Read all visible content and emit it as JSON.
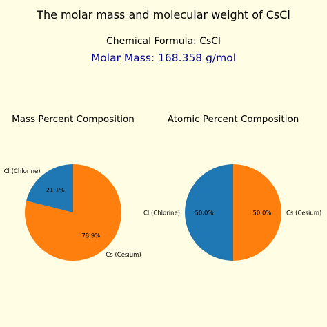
{
  "title": "The molar mass and molecular weight of CsCl",
  "formula_line": "Chemical Formula: CsCl",
  "molar_mass_line": "Molar Mass: 168.358 g/mol",
  "colors": {
    "background": "#fffde3",
    "cesium": "#ff7f0e",
    "chlorine": "#1f77b4",
    "molar_mass_text": "#00008b"
  },
  "chart_data": [
    {
      "type": "pie",
      "title": "Mass Percent Composition",
      "labels": [
        "Cs (Cesium)",
        "Cl (Chlorine)"
      ],
      "values": [
        78.9,
        21.1
      ],
      "value_labels": [
        "78.9%",
        "21.1%"
      ],
      "colors": [
        "#ff7f0e",
        "#1f77b4"
      ],
      "start_angle_deg": 90,
      "direction": "clockwise"
    },
    {
      "type": "pie",
      "title": "Atomic Percent Composition",
      "labels": [
        "Cs (Cesium)",
        "Cl (Chlorine)"
      ],
      "values": [
        50.0,
        50.0
      ],
      "value_labels": [
        "50.0%",
        "50.0%"
      ],
      "colors": [
        "#ff7f0e",
        "#1f77b4"
      ],
      "start_angle_deg": 90,
      "direction": "clockwise"
    }
  ]
}
